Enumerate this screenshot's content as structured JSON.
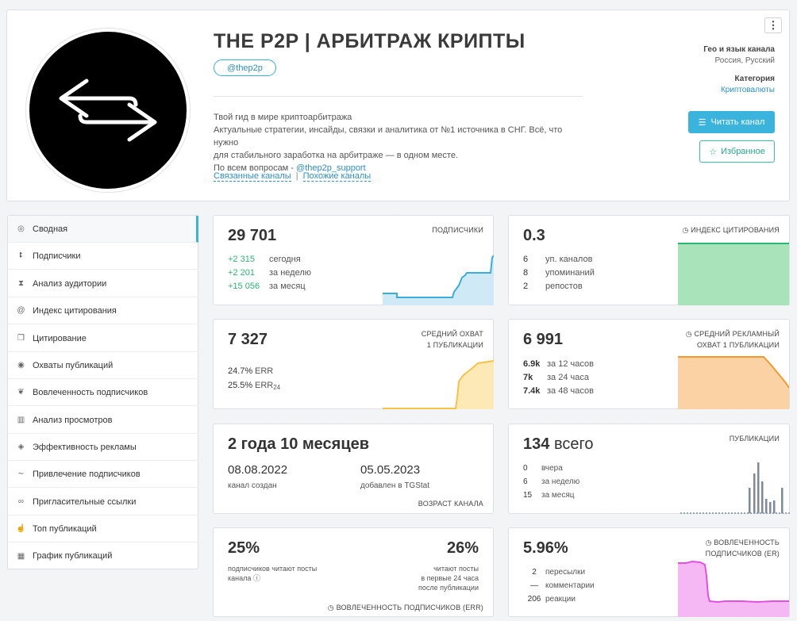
{
  "channel": {
    "title": "THE P2P | АРБИТРАЖ КРИПТЫ",
    "handle": "@thep2p",
    "description": [
      "Твой гид в мире криптоарбитража",
      "Актуальные стратегии, инсайды, связки и аналитика от №1 источника в СНГ. Всё, что нужно",
      "для стабильного заработка на арбитраже — в одном месте."
    ],
    "support_prefix": "По всем вопросам - ",
    "support_link": "@thep2p_support",
    "related_link": "Связанные каналы",
    "link_sep": "|",
    "similar_link": "Похожие каналы",
    "menu_icon": "⋮",
    "geo_label": "Гео и язык канала",
    "geo_value": "Россия, Русский",
    "category_label": "Категория",
    "category_value": "Криптовалюты",
    "read_button": "Читать канал",
    "fav_button": "Избранное"
  },
  "sidebar": {
    "items": [
      {
        "label": "Сводная",
        "icon": "dashboard-icon"
      },
      {
        "label": "Подписчики",
        "icon": "users-icon"
      },
      {
        "label": "Анализ аудитории",
        "icon": "hourglass-icon"
      },
      {
        "label": "Индекс цитирования",
        "icon": "at-icon"
      },
      {
        "label": "Цитирование",
        "icon": "copy-icon"
      },
      {
        "label": "Охваты публикаций",
        "icon": "eye-icon"
      },
      {
        "label": "Вовлеченность подписчиков",
        "icon": "engagement-icon"
      },
      {
        "label": "Анализ просмотров",
        "icon": "bar-chart-icon"
      },
      {
        "label": "Эффективность рекламы",
        "icon": "tag-icon"
      },
      {
        "label": "Привлечение подписчиков",
        "icon": "trend-icon"
      },
      {
        "label": "Пригласительные ссылки",
        "icon": "link-icon"
      },
      {
        "label": "Топ публикаций",
        "icon": "thumbs-up-icon"
      },
      {
        "label": "График публикаций",
        "icon": "calendar-icon"
      }
    ]
  },
  "stats": {
    "subscribers": {
      "value": "29 701",
      "caption": "ПОДПИСЧИКИ",
      "rows": [
        {
          "n": "+2 315",
          "t": "сегодня"
        },
        {
          "n": "+2 201",
          "t": "за неделю"
        },
        {
          "n": "+15 056",
          "t": "за месяц"
        }
      ]
    },
    "citation": {
      "value": "0.3",
      "caption": "ИНДЕКС ЦИТИРОВАНИЯ",
      "rows": [
        {
          "n": "6",
          "t": "уп. каналов"
        },
        {
          "n": "8",
          "t": "упоминаний"
        },
        {
          "n": "2",
          "t": "репостов"
        }
      ]
    },
    "reach": {
      "value": "7 327",
      "caption1": "СРЕДНИЙ ОХВАТ",
      "caption2": "1 ПУБЛИКАЦИИ",
      "rows": [
        {
          "n": "24.7%",
          "t": "ERR"
        },
        {
          "n": "25.5%",
          "t": "ERR",
          "sub": "24"
        }
      ]
    },
    "ad_reach": {
      "value": "6 991",
      "caption1": "СРЕДНИЙ РЕКЛАМНЫЙ",
      "caption2": "ОХВАТ 1 ПУБЛИКАЦИИ",
      "rows": [
        {
          "n": "6.9k",
          "t": "за 12 часов"
        },
        {
          "n": "7k",
          "t": "за 24 часа"
        },
        {
          "n": "7.4k",
          "t": "за 48 часов"
        }
      ]
    },
    "age": {
      "value": "2 года 10 месяцев",
      "created_date": "08.08.2022",
      "created_label": "канал создан",
      "added_date": "05.05.2023",
      "added_label": "добавлен в TGStat",
      "caption": "ВОЗРАСТ КАНАЛА"
    },
    "posts": {
      "value_num": "134",
      "value_word": "всего",
      "caption": "ПУБЛИКАЦИИ",
      "rows": [
        {
          "n": "0",
          "t": "вчера"
        },
        {
          "n": "6",
          "t": "за неделю"
        },
        {
          "n": "15",
          "t": "за месяц"
        }
      ]
    },
    "err": {
      "left_value": "25%",
      "left_label1": "подписчиков читают посты",
      "left_label2": "канала",
      "right_value": "26%",
      "right_label1": "читают посты",
      "right_label2": "в первые 24 часа",
      "right_label3": "после публикации",
      "caption": "ВОВЛЕЧЕННОСТЬ ПОДПИСЧИКОВ (ERR)"
    },
    "er": {
      "value": "5.96%",
      "caption1": "ВОВЛЕЧЕННОСТЬ",
      "caption2": "ПОДПИСЧИКОВ (ER)",
      "rows": [
        {
          "n": "2",
          "t": "пересылки"
        },
        {
          "n": "—",
          "t": "комментарии"
        },
        {
          "n": "206",
          "t": "реакции"
        }
      ]
    }
  },
  "colors": {
    "accent": "#3ab4dd",
    "green": "#2bb673",
    "blue_chart": "#3aaed8",
    "green_chart": "#7fd39a",
    "yellow_chart": "#f5c34a",
    "orange_chart": "#f29a2e",
    "gray_chart": "#7c8a99",
    "pink_chart": "#e44fe0"
  }
}
